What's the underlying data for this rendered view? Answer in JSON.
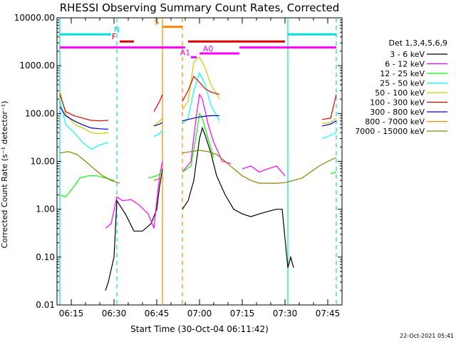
{
  "chart_data": {
    "type": "line",
    "title": "RHESSI Observing Summary Count Rates, Corrected",
    "xlabel": "Start Time (30-Oct-04 06:11:42)",
    "ylabel": "Corrected Count Rate (s⁻¹ detector⁻¹)",
    "ylog": true,
    "ylim": [
      0.01,
      10000
    ],
    "xlim": [
      "06:10",
      "07:50"
    ],
    "y_tick_labels": [
      "10000.00",
      "1000.00",
      "100.00",
      "10.00",
      "1.00",
      "0.10",
      "0.01"
    ],
    "x_tick_labels": [
      "06:15",
      "06:30",
      "06:45",
      "07:00",
      "07:15",
      "07:30",
      "07:45"
    ],
    "timestamp": "22-Oct-2021 05:41",
    "legend_title": "Det 1,3,4,5,6,9",
    "series": [
      {
        "name": "3 - 6 keV",
        "color": "#000000",
        "points": [
          [
            "06:27",
            0.02
          ],
          [
            "06:28",
            0.03
          ],
          [
            "06:30",
            0.1
          ],
          [
            "06:31",
            1.5
          ],
          [
            "06:34",
            0.8
          ],
          [
            "06:37",
            0.35
          ],
          [
            "06:40",
            0.35
          ],
          [
            "06:43",
            0.5
          ],
          [
            "06:45",
            1.0
          ],
          [
            "06:46",
            3.0
          ],
          [
            "06:47",
            7.0
          ],
          [
            "06:54",
            1.0
          ],
          [
            "06:56",
            1.5
          ],
          [
            "06:58",
            4.0
          ],
          [
            "07:00",
            30.0
          ],
          [
            "07:01",
            50.0
          ],
          [
            "07:02",
            35.0
          ],
          [
            "07:04",
            15.0
          ],
          [
            "07:06",
            5.0
          ],
          [
            "07:09",
            2.0
          ],
          [
            "07:12",
            1.0
          ],
          [
            "07:15",
            0.8
          ],
          [
            "07:18",
            0.7
          ],
          [
            "07:21",
            0.8
          ],
          [
            "07:24",
            0.9
          ],
          [
            "07:27",
            1.0
          ],
          [
            "07:29",
            1.0
          ],
          [
            "07:31",
            0.06
          ],
          [
            "07:32",
            0.1
          ],
          [
            "07:33",
            0.06
          ]
        ]
      },
      {
        "name": "6 - 12 keV",
        "color": "#ff00ff",
        "points": [
          [
            "06:27",
            0.4
          ],
          [
            "06:29",
            0.5
          ],
          [
            "06:31",
            1.8
          ],
          [
            "06:33",
            1.5
          ],
          [
            "06:36",
            1.6
          ],
          [
            "06:39",
            1.2
          ],
          [
            "06:42",
            0.8
          ],
          [
            "06:44",
            0.4
          ],
          [
            "06:45",
            1.5
          ],
          [
            "06:46",
            5.0
          ],
          [
            "06:47",
            10.0
          ],
          [
            "06:54",
            6.0
          ],
          [
            "06:57",
            10.0
          ],
          [
            "06:59",
            100.0
          ],
          [
            "07:00",
            250.0
          ],
          [
            "07:01",
            200.0
          ],
          [
            "07:03",
            60.0
          ],
          [
            "07:05",
            25.0
          ],
          [
            "07:08",
            10.0
          ],
          [
            "07:11",
            9.0
          ],
          [
            "07:15",
            7.0
          ],
          [
            "07:18",
            8.0
          ],
          [
            "07:21",
            6.0
          ],
          [
            "07:24",
            7.0
          ],
          [
            "07:27",
            8.0
          ],
          [
            "07:30",
            5.0
          ]
        ]
      },
      {
        "name": "12 - 25 keV",
        "color": "#00ff00",
        "points": [
          [
            "06:11",
            2.0
          ],
          [
            "06:13",
            1.8
          ],
          [
            "06:16",
            3.0
          ],
          [
            "06:18",
            4.5
          ],
          [
            "06:21",
            5.0
          ],
          [
            "06:24",
            5.0
          ],
          [
            "06:27",
            4.5
          ],
          [
            "06:30",
            4.0
          ],
          [
            "06:34",
            4.0
          ],
          [
            "06:38",
            4.0
          ],
          [
            "06:42",
            4.5
          ],
          [
            "06:45",
            5.0
          ],
          [
            "06:47",
            6.0
          ],
          [
            "06:54",
            6.0
          ],
          [
            "06:57",
            8.0
          ],
          [
            "06:59",
            40.0
          ],
          [
            "07:00",
            100.0
          ],
          [
            "07:01",
            80.0
          ],
          [
            "07:03",
            30.0
          ],
          [
            "07:05",
            12.0
          ],
          [
            "07:09",
            8.0
          ],
          [
            "07:13",
            6.0
          ],
          [
            "07:17",
            5.0
          ],
          [
            "07:21",
            5.0
          ],
          [
            "07:25",
            4.5
          ],
          [
            "07:29",
            4.5
          ],
          [
            "07:33",
            4.5
          ],
          [
            "07:38",
            4.5
          ],
          [
            "07:42",
            5.0
          ],
          [
            "07:46",
            5.5
          ],
          [
            "07:48",
            6.0
          ]
        ]
      },
      {
        "name": "25 - 50 keV",
        "color": "#00ffff",
        "points": [
          [
            "06:11",
            200.0
          ],
          [
            "06:13",
            60.0
          ],
          [
            "06:16",
            40.0
          ],
          [
            "06:19",
            25.0
          ],
          [
            "06:22",
            18.0
          ],
          [
            "06:25",
            22.0
          ],
          [
            "06:28",
            25.0
          ],
          [
            "06:32",
            25.0
          ],
          [
            "06:36",
            28.0
          ],
          [
            "06:40",
            30.0
          ],
          [
            "06:44",
            33.0
          ],
          [
            "06:46",
            38.0
          ],
          [
            "06:47",
            45.0
          ],
          [
            "06:54",
            60.0
          ],
          [
            "06:56",
            80.0
          ],
          [
            "06:58",
            300.0
          ],
          [
            "07:00",
            700.0
          ],
          [
            "07:02",
            400.0
          ],
          [
            "07:04",
            150.0
          ],
          [
            "07:07",
            70.0
          ],
          [
            "07:11",
            45.0
          ],
          [
            "07:15",
            40.0
          ],
          [
            "07:19",
            38.0
          ],
          [
            "07:23",
            36.0
          ],
          [
            "07:27",
            35.0
          ],
          [
            "07:31",
            30.0
          ],
          [
            "07:35",
            25.0
          ],
          [
            "07:39",
            25.0
          ],
          [
            "07:43",
            30.0
          ],
          [
            "07:46",
            35.0
          ],
          [
            "07:48",
            40.0
          ]
        ]
      },
      {
        "name": "50 - 100 keV",
        "color": "#cccc00",
        "points": [
          [
            "06:11",
            300.0
          ],
          [
            "06:13",
            100.0
          ],
          [
            "06:16",
            60.0
          ],
          [
            "06:19",
            50.0
          ],
          [
            "06:22",
            40.0
          ],
          [
            "06:25",
            38.0
          ],
          [
            "06:28",
            40.0
          ],
          [
            "06:32",
            42.0
          ],
          [
            "06:36",
            45.0
          ],
          [
            "06:40",
            48.0
          ],
          [
            "06:44",
            55.0
          ],
          [
            "06:46",
            70.0
          ],
          [
            "06:47",
            80.0
          ],
          [
            "06:54",
            120.0
          ],
          [
            "06:56",
            180.0
          ],
          [
            "06:58",
            1200.0
          ],
          [
            "07:00",
            1500.0
          ],
          [
            "07:02",
            900.0
          ],
          [
            "07:04",
            400.0
          ],
          [
            "07:07",
            200.0
          ],
          [
            "07:11",
            120.0
          ],
          [
            "07:15",
            90.0
          ],
          [
            "07:19",
            75.0
          ],
          [
            "07:23",
            70.0
          ],
          [
            "07:27",
            65.0
          ],
          [
            "07:31",
            60.0
          ],
          [
            "07:35",
            60.0
          ],
          [
            "07:39",
            60.0
          ],
          [
            "07:43",
            62.0
          ],
          [
            "07:46",
            65.0
          ],
          [
            "07:48",
            80.0
          ]
        ]
      },
      {
        "name": "100 - 300 keV",
        "color": "#e00000",
        "points": [
          [
            "06:11",
            250.0
          ],
          [
            "06:13",
            110.0
          ],
          [
            "06:16",
            90.0
          ],
          [
            "06:19",
            80.0
          ],
          [
            "06:22",
            72.0
          ],
          [
            "06:25",
            70.0
          ],
          [
            "06:28",
            72.0
          ],
          [
            "06:32",
            75.0
          ],
          [
            "06:36",
            80.0
          ],
          [
            "06:40",
            90.0
          ],
          [
            "06:44",
            110.0
          ],
          [
            "06:46",
            180.0
          ],
          [
            "06:47",
            250.0
          ],
          [
            "06:54",
            180.0
          ],
          [
            "06:56",
            300.0
          ],
          [
            "06:58",
            600.0
          ],
          [
            "07:00",
            450.0
          ],
          [
            "07:02",
            330.0
          ],
          [
            "07:04",
            280.0
          ],
          [
            "07:07",
            250.0
          ],
          [
            "07:11",
            220.0
          ],
          [
            "07:15",
            190.0
          ],
          [
            "07:19",
            160.0
          ],
          [
            "07:23",
            130.0
          ],
          [
            "07:27",
            110.0
          ],
          [
            "07:31",
            95.0
          ],
          [
            "07:35",
            85.0
          ],
          [
            "07:39",
            80.0
          ],
          [
            "07:43",
            75.0
          ],
          [
            "07:46",
            80.0
          ],
          [
            "07:48",
            250.0
          ]
        ]
      },
      {
        "name": "300 - 800 keV",
        "color": "#0000cc",
        "points": [
          [
            "06:11",
            140.0
          ],
          [
            "06:13",
            90.0
          ],
          [
            "06:16",
            70.0
          ],
          [
            "06:19",
            58.0
          ],
          [
            "06:22",
            50.0
          ],
          [
            "06:25",
            48.0
          ],
          [
            "06:28",
            47.0
          ],
          [
            "06:32",
            48.0
          ],
          [
            "06:36",
            50.0
          ],
          [
            "06:40",
            52.0
          ],
          [
            "06:44",
            55.0
          ],
          [
            "06:46",
            60.0
          ],
          [
            "06:47",
            65.0
          ],
          [
            "06:54",
            70.0
          ],
          [
            "06:56",
            75.0
          ],
          [
            "06:58",
            80.0
          ],
          [
            "07:00",
            85.0
          ],
          [
            "07:02",
            88.0
          ],
          [
            "07:04",
            90.0
          ],
          [
            "07:07",
            90.0
          ],
          [
            "07:11",
            85.0
          ],
          [
            "07:15",
            75.0
          ],
          [
            "07:19",
            65.0
          ],
          [
            "07:23",
            58.0
          ],
          [
            "07:27",
            55.0
          ],
          [
            "07:31",
            52.0
          ],
          [
            "07:35",
            52.0
          ],
          [
            "07:39",
            52.0
          ],
          [
            "07:43",
            55.0
          ],
          [
            "07:46",
            60.0
          ],
          [
            "07:48",
            70.0
          ]
        ]
      },
      {
        "name": "800 - 7000 keV",
        "color": "#ff8800",
        "points": []
      },
      {
        "name": "7000 - 15000 keV",
        "color": "#8b8000",
        "points": [
          [
            "06:11",
            15.0
          ],
          [
            "06:14",
            16.0
          ],
          [
            "06:17",
            14.0
          ],
          [
            "06:20",
            10.0
          ],
          [
            "06:23",
            7.0
          ],
          [
            "06:26",
            5.0
          ],
          [
            "06:29",
            4.0
          ],
          [
            "06:32",
            3.5
          ],
          [
            "06:36",
            3.5
          ],
          [
            "06:40",
            3.6
          ],
          [
            "06:44",
            4.0
          ],
          [
            "06:47",
            4.5
          ],
          [
            "06:54",
            15.0
          ],
          [
            "06:57",
            16.0
          ],
          [
            "07:00",
            17.0
          ],
          [
            "07:03",
            16.0
          ],
          [
            "07:06",
            14.0
          ],
          [
            "07:09",
            10.0
          ],
          [
            "07:12",
            7.0
          ],
          [
            "07:15",
            5.0
          ],
          [
            "07:18",
            4.0
          ],
          [
            "07:21",
            3.5
          ],
          [
            "07:24",
            3.5
          ],
          [
            "07:27",
            3.5
          ],
          [
            "07:30",
            3.6
          ],
          [
            "07:33",
            4.0
          ],
          [
            "07:36",
            4.5
          ],
          [
            "07:39",
            6.0
          ],
          [
            "07:42",
            8.0
          ],
          [
            "07:45",
            10.0
          ],
          [
            "07:48",
            12.0
          ]
        ]
      }
    ],
    "flag_bars": [
      {
        "label": "N",
        "color": "#00e0e0",
        "y": 4500,
        "start": "06:11",
        "end": "06:29",
        "label_at": "06:31"
      },
      {
        "label": "",
        "color": "#00e0e0",
        "y": 4500,
        "start": "07:31",
        "end": "07:48",
        "label_at": ""
      },
      {
        "label": "F",
        "color": "#e00000",
        "y": 3200,
        "start": "06:32",
        "end": "06:37",
        "label_at": "06:30"
      },
      {
        "label": "",
        "color": "#e00000",
        "y": 3200,
        "start": "06:56",
        "end": "07:30",
        "label_at": ""
      },
      {
        "label": "S",
        "color": "#ff8800",
        "y": 6500,
        "start": "06:47",
        "end": "06:54",
        "label_at": "06:45"
      },
      {
        "label": "",
        "color": "#ff00ff",
        "y": 2400,
        "start": "06:11",
        "end": "06:55",
        "label_at": ""
      },
      {
        "label": "",
        "color": "#ff00ff",
        "y": 2400,
        "start": "07:14",
        "end": "07:48",
        "label_at": ""
      },
      {
        "label": "A0",
        "color": "#ff00ff",
        "y": 1800,
        "start": "07:00",
        "end": "07:14",
        "label_at": "07:03"
      },
      {
        "label": "A1",
        "color": "#ff00ff",
        "y": 1500,
        "start": "06:57",
        "end": "06:59",
        "label_at": "06:55"
      }
    ],
    "vertical_markers": [
      {
        "time": "06:11",
        "color": "#00e0e0",
        "style": "solid"
      },
      {
        "time": "06:31",
        "color": "#00e0e0",
        "style": "dashed"
      },
      {
        "time": "06:47",
        "color": "#ff8800",
        "style": "solid"
      },
      {
        "time": "06:54",
        "color": "#ff8800",
        "style": "dashed"
      },
      {
        "time": "07:31",
        "color": "#00e0e0",
        "style": "solid"
      },
      {
        "time": "07:48",
        "color": "#00e0e0",
        "style": "dashed"
      }
    ]
  }
}
